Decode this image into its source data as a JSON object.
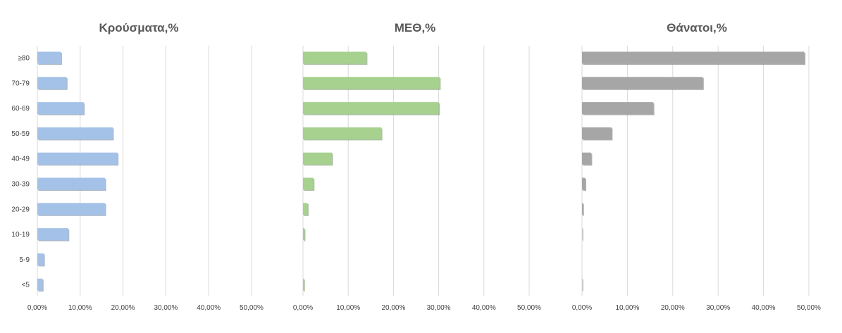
{
  "chart_data": [
    {
      "type": "bar",
      "orientation": "horizontal",
      "title": "Κρούσματα,%",
      "categories": [
        "≥80",
        "70-79",
        "60-69",
        "50-59",
        "40-49",
        "30-39",
        "20-29",
        "10-19",
        "5-9",
        "<5"
      ],
      "values": [
        5.5,
        6.8,
        10.8,
        17.6,
        18.7,
        15.8,
        15.8,
        7.2,
        1.5,
        1.2
      ],
      "xlim": [
        0,
        50
      ],
      "xticks": [
        "0,00%",
        "10,00%",
        "20,00%",
        "30,00%",
        "40,00%",
        "50,00%"
      ],
      "grid": true,
      "color": "#a4c2e8"
    },
    {
      "type": "bar",
      "orientation": "horizontal",
      "title": "ΜΕΘ,%",
      "categories": [
        "≥80",
        "70-79",
        "60-69",
        "50-59",
        "40-49",
        "30-39",
        "20-29",
        "10-19",
        "5-9",
        "<5"
      ],
      "values": [
        14.0,
        30.2,
        30.0,
        17.3,
        6.4,
        2.3,
        1.0,
        0.3,
        0.0,
        0.2
      ],
      "xlim": [
        0,
        50
      ],
      "xticks": [
        "0,00%",
        "10,00%",
        "20,00%",
        "30,00%",
        "40,00%",
        "50,00%"
      ],
      "grid": true,
      "color": "#a6d18f"
    },
    {
      "type": "bar",
      "orientation": "horizontal",
      "title": "Θάνατοι,%",
      "categories": [
        "≥80",
        "70-79",
        "60-69",
        "50-59",
        "40-49",
        "30-39",
        "20-29",
        "10-19",
        "5-9",
        "<5"
      ],
      "values": [
        49.0,
        26.6,
        15.7,
        6.5,
        2.0,
        0.7,
        0.2,
        0.1,
        0.0,
        0.1
      ],
      "xlim": [
        0,
        50
      ],
      "xticks": [
        "0,00%",
        "10,00%",
        "20,00%",
        "30,00%",
        "40,00%",
        "50,00%"
      ],
      "grid": true,
      "color": "#a6a6a6"
    }
  ]
}
